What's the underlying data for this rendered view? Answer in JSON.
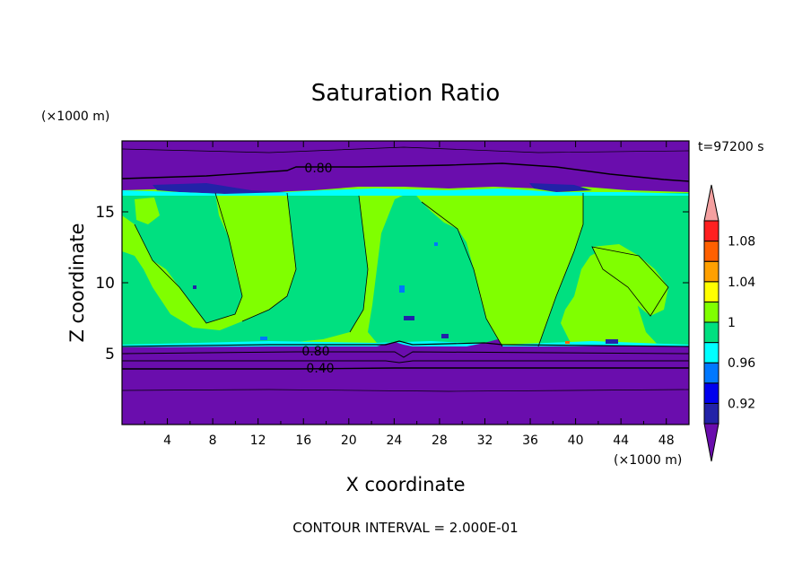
{
  "chart_data": {
    "type": "heatmap",
    "title": "Saturation Ratio",
    "xlabel": "X coordinate",
    "ylabel": "Z coordinate",
    "x_unit": "(×1000 m)",
    "y_unit": "(×1000 m)",
    "time_label": "t=97200 s",
    "footer": "CONTOUR INTERVAL = 2.000E-01",
    "xlim": [
      0,
      50
    ],
    "ylim": [
      0,
      20
    ],
    "x_ticks": [
      "4",
      "8",
      "12",
      "16",
      "20",
      "24",
      "28",
      "32",
      "36",
      "40",
      "44",
      "48"
    ],
    "y_ticks": [
      "5",
      "10",
      "15"
    ],
    "colorbar": {
      "levels": [
        0.9,
        0.92,
        0.94,
        0.96,
        0.98,
        1.0,
        1.02,
        1.04,
        1.06,
        1.08,
        1.1
      ],
      "colors": [
        "#6a0dad",
        "#2222a8",
        "#0000ee",
        "#0078ff",
        "#00ffff",
        "#00e080",
        "#80ff00",
        "#ffff00",
        "#ffa000",
        "#ff6000",
        "#ff2020",
        "#f4a0a0"
      ],
      "tick_labels": [
        "0.92",
        "0.96",
        "1",
        "1.04",
        "1.08"
      ],
      "tick_values": [
        0.92,
        0.96,
        1.0,
        1.04,
        1.08
      ]
    },
    "contour_labels": [
      {
        "text": "0.80",
        "x": 17.5,
        "z": 17.9
      },
      {
        "text": "0.80",
        "x": 17.0,
        "z": 5.1
      },
      {
        "text": "0.40",
        "x": 17.5,
        "z": 4.1
      }
    ],
    "regions": {
      "lower_dry_layer_top_z": 5.3,
      "upper_dry_layer_base_z": 16.3,
      "moist_values": "0.98–1.02"
    }
  }
}
